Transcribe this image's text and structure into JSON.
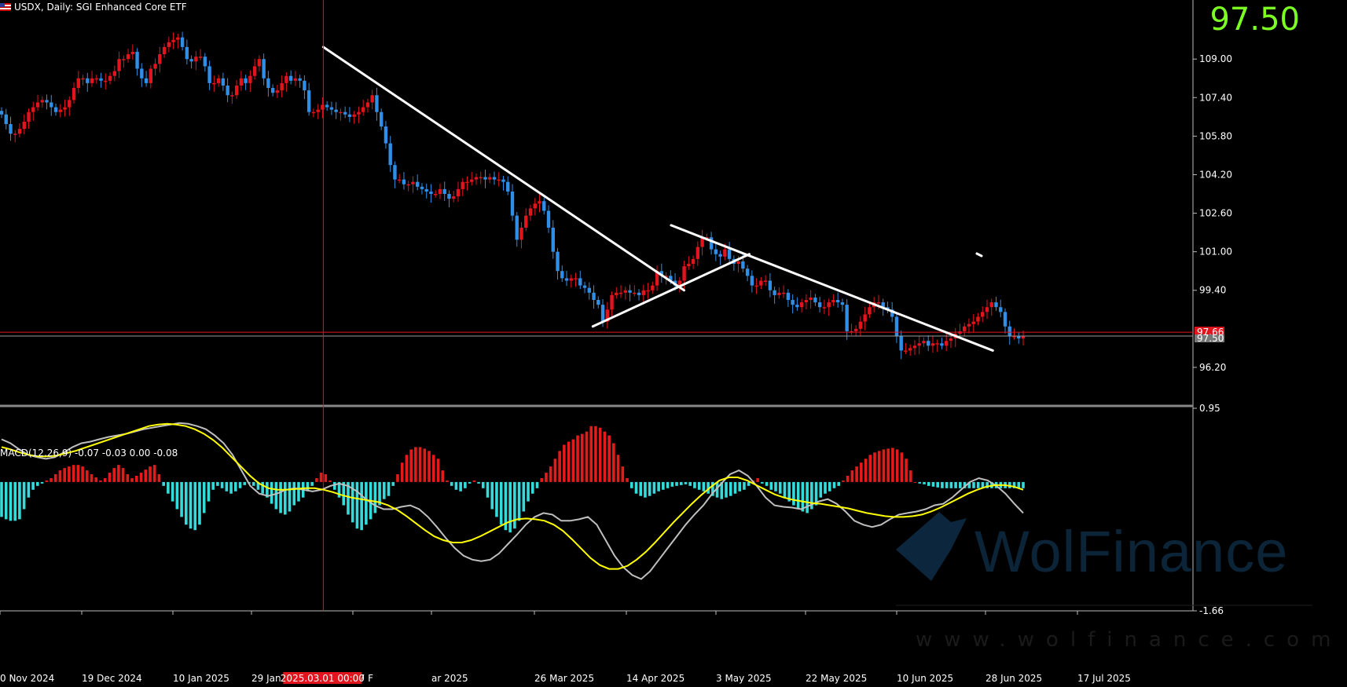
{
  "header": {
    "symbol_line": "USDX, Daily:  SGI Enhanced Core ETF",
    "big_price": "97.50"
  },
  "macd": {
    "label": "MACD(12,26,9) -0.07 -0.03 0.00 -0.08"
  },
  "watermark": {
    "brand": "WolFinance",
    "url": "www.wolfinance.com"
  },
  "crosshair": {
    "date_label": "2025.03.01 00:00"
  },
  "price_tags": {
    "red": "97.66",
    "gray": "97.50"
  },
  "colors": {
    "background": "#000000",
    "bull": "#e2141e",
    "bear": "#2f8fe6",
    "histogram_pos": "#e31b1b",
    "histogram_neg": "#35dada",
    "macd_line": "#bfbfbf",
    "signal_line": "#ffff00",
    "trendline": "#ffffff",
    "big_price": "#7cff22",
    "crosshair": "#e2141e"
  },
  "chart_data": [
    {
      "type": "candlestick",
      "title": "USDX, Daily:  SGI Enhanced Core ETF",
      "x_tick_labels": [
        "0 Nov 2024",
        "19 Dec 2024",
        "10 Jan 2025",
        "29 Jan 2025",
        "17 F",
        "ar 2025",
        "26 Mar 2025",
        "14 Apr 2025",
        "3 May 2025",
        "22 May 2025",
        "10 Jun 2025",
        "28 Jun 2025",
        "17 Jul 2025"
      ],
      "y_tick_labels": [
        "109.00",
        "107.40",
        "105.80",
        "104.20",
        "102.60",
        "101.00",
        "99.40",
        "96.20"
      ],
      "ylim": [
        94.6,
        110.8
      ],
      "close_path": [
        106.7,
        106.3,
        105.9,
        105.9,
        106.1,
        106.4,
        106.8,
        107.0,
        107.2,
        107.3,
        107.2,
        107.0,
        106.8,
        106.9,
        107.0,
        107.3,
        107.8,
        108.2,
        108.2,
        108.0,
        108.2,
        108.2,
        108.1,
        108.1,
        108.3,
        108.5,
        109.0,
        109.0,
        109.2,
        109.3,
        108.6,
        108.2,
        108.0,
        108.6,
        108.8,
        109.2,
        109.5,
        109.7,
        109.8,
        109.9,
        109.5,
        109.0,
        108.9,
        109.1,
        109.1,
        108.7,
        108.0,
        108.0,
        108.2,
        107.9,
        107.5,
        107.5,
        107.9,
        108.2,
        108.0,
        108.3,
        108.7,
        109.0,
        108.2,
        107.8,
        107.6,
        107.7,
        108.0,
        108.3,
        108.1,
        108.2,
        108.1,
        107.7,
        106.8,
        106.8,
        106.9,
        107.1,
        107.0,
        106.9,
        106.8,
        106.8,
        106.7,
        106.6,
        106.7,
        106.8,
        107.0,
        107.2,
        107.5,
        106.8,
        106.2,
        105.5,
        104.6,
        104.0,
        104.0,
        103.8,
        103.8,
        103.9,
        103.7,
        103.6,
        103.5,
        103.4,
        103.4,
        103.6,
        103.4,
        103.2,
        103.3,
        103.6,
        103.9,
        103.9,
        104.0,
        104.1,
        104.1,
        104.0,
        104.1,
        104.0,
        104.0,
        103.9,
        103.5,
        102.5,
        101.5,
        102.0,
        102.5,
        102.8,
        103.0,
        103.1,
        102.7,
        102.0,
        101.0,
        100.2,
        99.9,
        99.8,
        99.9,
        99.9,
        99.6,
        99.5,
        99.3,
        99.0,
        98.8,
        98.1,
        98.6,
        99.2,
        99.3,
        99.3,
        99.4,
        99.3,
        99.3,
        99.2,
        99.4,
        99.4,
        99.6,
        100.2,
        100.0,
        100.0,
        99.8,
        99.6,
        99.8,
        100.4,
        100.5,
        100.7,
        101.2,
        101.6,
        101.6,
        101.1,
        100.9,
        100.8,
        101.1,
        100.7,
        100.5,
        100.6,
        100.3,
        100.0,
        99.6,
        99.6,
        99.8,
        99.8,
        99.4,
        99.2,
        99.3,
        99.3,
        99.0,
        98.8,
        98.7,
        98.9,
        99.0,
        99.1,
        98.9,
        98.7,
        98.7,
        98.9,
        99.0,
        98.9,
        98.8,
        97.7,
        97.7,
        97.8,
        98.1,
        98.4,
        98.7,
        98.9,
        98.9,
        98.7,
        98.6,
        98.3,
        97.5,
        96.9,
        96.9,
        97.0,
        97.1,
        97.2,
        97.3,
        97.1,
        97.2,
        97.2,
        97.1,
        97.3,
        97.4,
        97.6,
        97.7,
        97.9,
        98.0,
        98.1,
        98.3,
        98.5,
        98.7,
        98.9,
        98.7,
        98.5,
        97.9,
        97.5,
        97.5,
        97.4,
        97.5
      ],
      "trendlines": [
        {
          "from": [
            "2025-02-11",
            109.5
          ],
          "to": [
            "2025-05-05",
            99.4
          ]
        },
        {
          "from": [
            "2025-04-14",
            97.9
          ],
          "to": [
            "2025-05-20",
            100.9
          ]
        },
        {
          "from": [
            "2025-05-02",
            102.1
          ],
          "to": [
            "2025-07-15",
            96.9
          ]
        }
      ],
      "horizontal_levels": [
        {
          "value": 97.66,
          "color": "#e2141e"
        },
        {
          "value": 97.5,
          "color": "#9a9a9a"
        }
      ]
    },
    {
      "type": "macd",
      "title": "MACD(12,26,9) -0.07 -0.03 0.00 -0.08",
      "y_tick_labels": [
        "0.95",
        "-1.66"
      ],
      "ylim": [
        -1.66,
        0.95
      ],
      "histogram_path": [
        -0.45,
        -0.48,
        -0.5,
        -0.5,
        -0.48,
        -0.35,
        -0.2,
        -0.1,
        -0.05,
        -0.02,
        0.02,
        0.05,
        0.1,
        0.15,
        0.18,
        0.2,
        0.22,
        0.22,
        0.2,
        0.15,
        0.1,
        0.06,
        0.02,
        0.05,
        0.12,
        0.18,
        0.22,
        0.18,
        0.1,
        0.05,
        0.08,
        0.12,
        0.16,
        0.2,
        0.22,
        0.1,
        -0.05,
        -0.15,
        -0.25,
        -0.35,
        -0.45,
        -0.55,
        -0.6,
        -0.62,
        -0.55,
        -0.4,
        -0.25,
        -0.1,
        -0.05,
        -0.08,
        -0.12,
        -0.15,
        -0.12,
        -0.08,
        -0.04,
        -0.02,
        -0.05,
        -0.1,
        -0.15,
        -0.2,
        -0.28,
        -0.35,
        -0.4,
        -0.42,
        -0.38,
        -0.3,
        -0.25,
        -0.2,
        -0.12,
        -0.05,
        0.05,
        0.12,
        0.1,
        0.02,
        -0.1,
        -0.2,
        -0.3,
        -0.42,
        -0.52,
        -0.6,
        -0.62,
        -0.55,
        -0.48,
        -0.4,
        -0.3,
        -0.22,
        -0.18,
        -0.05,
        0.1,
        0.25,
        0.35,
        0.42,
        0.45,
        0.45,
        0.43,
        0.4,
        0.35,
        0.3,
        0.15,
        0.02,
        -0.05,
        -0.1,
        -0.12,
        -0.08,
        -0.02,
        0.02,
        -0.02,
        -0.08,
        -0.2,
        -0.35,
        -0.45,
        -0.55,
        -0.62,
        -0.65,
        -0.6,
        -0.5,
        -0.38,
        -0.25,
        -0.15,
        -0.08,
        0.05,
        0.12,
        0.2,
        0.3,
        0.4,
        0.48,
        0.52,
        0.55,
        0.6,
        0.62,
        0.65,
        0.72,
        0.72,
        0.7,
        0.65,
        0.6,
        0.5,
        0.35,
        0.2,
        0.05,
        -0.08,
        -0.15,
        -0.18,
        -0.2,
        -0.18,
        -0.15,
        -0.12,
        -0.1,
        -0.08,
        -0.06,
        -0.05,
        -0.04,
        -0.03,
        -0.05,
        -0.08,
        -0.1,
        -0.12,
        -0.15,
        -0.18,
        -0.2,
        -0.22,
        -0.2,
        -0.18,
        -0.15,
        -0.12,
        -0.1,
        -0.05,
        0.02,
        0.05,
        -0.02,
        -0.05,
        -0.1,
        -0.12,
        -0.15,
        -0.2,
        -0.25,
        -0.3,
        -0.35,
        -0.38,
        -0.4,
        -0.35,
        -0.3,
        -0.2,
        -0.15,
        -0.12,
        -0.08,
        -0.05,
        0.02,
        0.08,
        0.15,
        0.2,
        0.25,
        0.3,
        0.35,
        0.38,
        0.4,
        0.42,
        0.43,
        0.44,
        0.42,
        0.38,
        0.3,
        0.15,
        0.0,
        -0.02,
        -0.03,
        -0.05,
        -0.06,
        -0.07,
        -0.08,
        -0.08,
        -0.08,
        -0.08,
        -0.08,
        -0.08,
        -0.08,
        -0.08,
        -0.08,
        -0.08,
        -0.08,
        -0.08,
        -0.08,
        -0.08,
        -0.08,
        -0.08,
        -0.08,
        -0.08,
        -0.08
      ],
      "macd_path": [
        0.55,
        0.5,
        0.42,
        0.35,
        0.32,
        0.3,
        0.32,
        0.38,
        0.45,
        0.5,
        0.52,
        0.55,
        0.58,
        0.6,
        0.62,
        0.65,
        0.68,
        0.7,
        0.72,
        0.74,
        0.76,
        0.75,
        0.72,
        0.68,
        0.6,
        0.5,
        0.35,
        0.15,
        -0.05,
        -0.15,
        -0.18,
        -0.15,
        -0.1,
        -0.08,
        -0.1,
        -0.12,
        -0.1,
        -0.05,
        -0.02,
        -0.05,
        -0.12,
        -0.22,
        -0.3,
        -0.35,
        -0.35,
        -0.32,
        -0.3,
        -0.35,
        -0.45,
        -0.58,
        -0.72,
        -0.85,
        -0.95,
        -1.0,
        -1.02,
        -1.0,
        -0.92,
        -0.8,
        -0.68,
        -0.55,
        -0.45,
        -0.4,
        -0.42,
        -0.5,
        -0.5,
        -0.48,
        -0.45,
        -0.55,
        -0.75,
        -0.95,
        -1.1,
        -1.2,
        -1.25,
        -1.15,
        -1.0,
        -0.85,
        -0.7,
        -0.55,
        -0.42,
        -0.3,
        -0.15,
        -0.02,
        0.1,
        0.15,
        0.08,
        -0.05,
        -0.2,
        -0.3,
        -0.32,
        -0.33,
        -0.35,
        -0.3,
        -0.25,
        -0.22,
        -0.28,
        -0.38,
        -0.5,
        -0.55,
        -0.58,
        -0.55,
        -0.48,
        -0.42,
        -0.4,
        -0.38,
        -0.35,
        -0.3,
        -0.28,
        -0.2,
        -0.1,
        0.0,
        0.05,
        0.02,
        -0.05,
        -0.15,
        -0.28,
        -0.4
      ],
      "signal_path": [
        0.45,
        0.42,
        0.38,
        0.35,
        0.33,
        0.33,
        0.34,
        0.37,
        0.4,
        0.44,
        0.48,
        0.52,
        0.56,
        0.6,
        0.64,
        0.68,
        0.72,
        0.74,
        0.75,
        0.74,
        0.72,
        0.68,
        0.62,
        0.54,
        0.44,
        0.32,
        0.2,
        0.08,
        -0.02,
        -0.08,
        -0.1,
        -0.1,
        -0.09,
        -0.08,
        -0.08,
        -0.1,
        -0.13,
        -0.17,
        -0.2,
        -0.22,
        -0.24,
        -0.26,
        -0.3,
        -0.36,
        -0.44,
        -0.53,
        -0.62,
        -0.7,
        -0.75,
        -0.78,
        -0.78,
        -0.75,
        -0.7,
        -0.64,
        -0.58,
        -0.52,
        -0.48,
        -0.47,
        -0.48,
        -0.5,
        -0.55,
        -0.63,
        -0.74,
        -0.86,
        -0.98,
        -1.07,
        -1.12,
        -1.12,
        -1.08,
        -1.0,
        -0.9,
        -0.78,
        -0.65,
        -0.52,
        -0.4,
        -0.28,
        -0.17,
        -0.07,
        0.02,
        0.06,
        0.06,
        0.02,
        -0.04,
        -0.1,
        -0.16,
        -0.2,
        -0.23,
        -0.25,
        -0.27,
        -0.28,
        -0.3,
        -0.32,
        -0.34,
        -0.37,
        -0.4,
        -0.42,
        -0.44,
        -0.45,
        -0.45,
        -0.44,
        -0.42,
        -0.38,
        -0.33,
        -0.27,
        -0.21,
        -0.15,
        -0.1,
        -0.06,
        -0.04,
        -0.04,
        -0.06,
        -0.1
      ]
    }
  ]
}
